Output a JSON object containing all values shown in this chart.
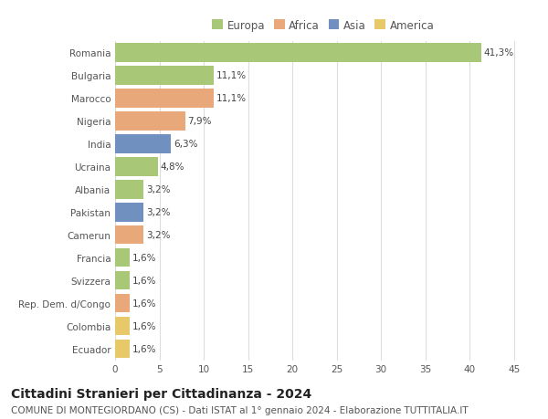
{
  "categories": [
    "Ecuador",
    "Colombia",
    "Rep. Dem. d/Congo",
    "Svizzera",
    "Francia",
    "Camerun",
    "Pakistan",
    "Albania",
    "Ucraina",
    "India",
    "Nigeria",
    "Marocco",
    "Bulgaria",
    "Romania"
  ],
  "values": [
    1.6,
    1.6,
    1.6,
    1.6,
    1.6,
    3.2,
    3.2,
    3.2,
    4.8,
    6.3,
    7.9,
    11.1,
    11.1,
    41.3
  ],
  "labels": [
    "1,6%",
    "1,6%",
    "1,6%",
    "1,6%",
    "1,6%",
    "3,2%",
    "3,2%",
    "3,2%",
    "4,8%",
    "6,3%",
    "7,9%",
    "11,1%",
    "11,1%",
    "41,3%"
  ],
  "colors": [
    "#e8c96a",
    "#e8c96a",
    "#e8a87a",
    "#a8c878",
    "#a8c878",
    "#e8a87a",
    "#7090c0",
    "#a8c878",
    "#a8c878",
    "#7090c0",
    "#e8a87a",
    "#e8a87a",
    "#a8c878",
    "#a8c878"
  ],
  "legend_labels": [
    "Europa",
    "Africa",
    "Asia",
    "America"
  ],
  "legend_colors": [
    "#a8c878",
    "#e8a87a",
    "#7090c0",
    "#e8c96a"
  ],
  "title": "Cittadini Stranieri per Cittadinanza - 2024",
  "subtitle": "COMUNE DI MONTEGIORDANO (CS) - Dati ISTAT al 1° gennaio 2024 - Elaborazione TUTTITALIA.IT",
  "xlim": [
    0,
    47
  ],
  "xticks": [
    0,
    5,
    10,
    15,
    20,
    25,
    30,
    35,
    40,
    45
  ],
  "bar_height": 0.82,
  "background_color": "#ffffff",
  "grid_color": "#dddddd",
  "title_fontsize": 10,
  "subtitle_fontsize": 7.5,
  "tick_fontsize": 7.5,
  "label_fontsize": 7.5,
  "legend_fontsize": 8.5
}
